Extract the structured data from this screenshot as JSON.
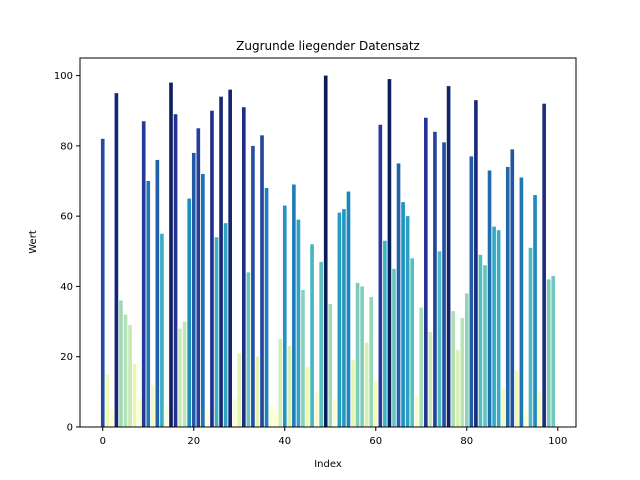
{
  "chart_data": {
    "type": "bar",
    "title": "Zugrunde liegender Datensatz",
    "xlabel": "Index",
    "ylabel": "Wert",
    "xlim": [
      -5,
      104
    ],
    "ylim": [
      0,
      105
    ],
    "xticks": [
      0,
      20,
      40,
      60,
      80,
      100
    ],
    "yticks": [
      0,
      20,
      40,
      60,
      80,
      100
    ],
    "grid": false,
    "colormap": "YlGnBu",
    "categories": [
      0,
      1,
      2,
      3,
      4,
      5,
      6,
      7,
      8,
      9,
      10,
      11,
      12,
      13,
      14,
      15,
      16,
      17,
      18,
      19,
      20,
      21,
      22,
      23,
      24,
      25,
      26,
      27,
      28,
      29,
      30,
      31,
      32,
      33,
      34,
      35,
      36,
      37,
      38,
      39,
      40,
      41,
      42,
      43,
      44,
      45,
      46,
      47,
      48,
      49,
      50,
      51,
      52,
      53,
      54,
      55,
      56,
      57,
      58,
      59,
      60,
      61,
      62,
      63,
      64,
      65,
      66,
      67,
      68,
      69,
      70,
      71,
      72,
      73,
      74,
      75,
      76,
      77,
      78,
      79,
      80,
      81,
      82,
      83,
      84,
      85,
      86,
      87,
      88,
      89,
      90,
      91,
      92,
      93,
      94,
      95,
      96,
      97,
      98,
      99
    ],
    "values": [
      82,
      15,
      5,
      95,
      36,
      32,
      29,
      18,
      8,
      87,
      70,
      12,
      76,
      55,
      6,
      98,
      89,
      28,
      30,
      65,
      78,
      85,
      72,
      5,
      90,
      54,
      94,
      58,
      96,
      8,
      21,
      91,
      44,
      80,
      20,
      83,
      68,
      6,
      5,
      25,
      63,
      23,
      69,
      59,
      39,
      17,
      52,
      10,
      47,
      100,
      35,
      8,
      61,
      62,
      67,
      19,
      41,
      40,
      24,
      37,
      13,
      86,
      53,
      99,
      45,
      75,
      64,
      60,
      48,
      9,
      34,
      88,
      27,
      84,
      50,
      81,
      97,
      33,
      22,
      31,
      38,
      77,
      93,
      49,
      46,
      73,
      57,
      56,
      11,
      74,
      79,
      16,
      71,
      5,
      51,
      66,
      10,
      92,
      42,
      43
    ]
  }
}
